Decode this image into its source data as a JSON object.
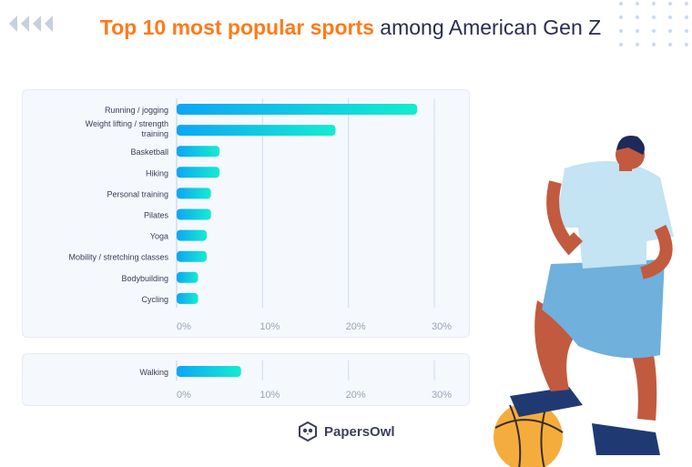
{
  "title_highlight": "Top 10 most popular sports",
  "title_rest": " among American Gen Z",
  "brand": "PapersOwl",
  "colors": {
    "accent": "#ff7a1a",
    "bar_start": "#0ea5f5",
    "bar_end": "#14ecd0"
  },
  "chart_data": [
    {
      "type": "bar",
      "orientation": "horizontal",
      "title": "Top 10 most popular sports among American Gen Z",
      "categories": [
        "Running / jogging",
        "Weight lifting / strength training",
        "Basketball",
        "Hiking",
        "Personal training",
        "Pilates",
        "Yoga",
        "Mobility / stretching classes",
        "Bodybuilding",
        "Cycling"
      ],
      "values": [
        28,
        18.5,
        5,
        5,
        4,
        4,
        3.5,
        3.5,
        2.5,
        2.5
      ],
      "xlim": [
        0,
        30
      ],
      "xticks": [
        "0%",
        "10%",
        "20%",
        "30%"
      ],
      "grid": true
    },
    {
      "type": "bar",
      "orientation": "horizontal",
      "categories": [
        "Walking"
      ],
      "values": [
        7.5
      ],
      "xlim": [
        0,
        30
      ],
      "xticks": [
        "0%",
        "10%",
        "20%",
        "30%"
      ],
      "grid": true
    }
  ]
}
